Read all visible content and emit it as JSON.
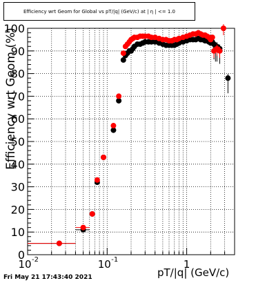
{
  "title": "Efficiency wrt Geom for Global vs pT/|q| (GeV/c) at | η | <= 1.0",
  "timestamp": "Fri May 21 17:43:40 2021",
  "colors": {
    "series_black": "#000000",
    "series_red": "#ff0000"
  },
  "chart_data": {
    "type": "scatter",
    "title": "Efficiency wrt Geom for Global vs pT/|q| (GeV/c) at | η | <= 1.0",
    "xlabel": "pT/|q| (GeV/c)",
    "ylabel": "Efficiency wrt Geom (%)",
    "xscale": "log",
    "xlim": [
      0.01,
      4
    ],
    "ylim": [
      0,
      100
    ],
    "grid": true,
    "x_ticks": [
      {
        "v": 0.01,
        "label": "10"
      },
      {
        "v": 0.1,
        "label": "10"
      },
      {
        "v": 1,
        "label": "1"
      }
    ],
    "x_tick_exp": "-2",
    "x_tick_exp2": "-1",
    "y_ticks": [
      0,
      10,
      20,
      30,
      40,
      50,
      60,
      70,
      80,
      90,
      100
    ],
    "series": [
      {
        "color": "#000000",
        "points": [
          [
            0.025,
            5
          ],
          [
            0.05,
            11
          ],
          [
            0.065,
            18
          ],
          [
            0.075,
            32
          ],
          [
            0.09,
            43
          ],
          [
            0.12,
            55
          ],
          [
            0.14,
            68
          ],
          [
            0.16,
            86
          ],
          [
            0.17,
            88
          ],
          [
            0.18,
            89
          ],
          [
            0.19,
            90
          ],
          [
            0.2,
            90
          ],
          [
            0.21,
            91
          ],
          [
            0.22,
            92
          ],
          [
            0.24,
            93
          ],
          [
            0.26,
            93
          ],
          [
            0.28,
            93.5
          ],
          [
            0.3,
            94
          ],
          [
            0.33,
            94
          ],
          [
            0.36,
            94
          ],
          [
            0.4,
            94
          ],
          [
            0.45,
            93.5
          ],
          [
            0.5,
            93
          ],
          [
            0.55,
            92.5
          ],
          [
            0.6,
            92.5
          ],
          [
            0.65,
            92.5
          ],
          [
            0.7,
            92.5
          ],
          [
            0.75,
            93
          ],
          [
            0.8,
            93.5
          ],
          [
            0.9,
            94
          ],
          [
            1.0,
            94.5
          ],
          [
            1.1,
            95
          ],
          [
            1.2,
            95
          ],
          [
            1.3,
            95
          ],
          [
            1.4,
            95.5
          ],
          [
            1.5,
            95
          ],
          [
            1.6,
            95
          ],
          [
            1.7,
            94.5
          ],
          [
            1.8,
            94.5
          ],
          [
            1.9,
            94
          ],
          [
            2.0,
            93.5
          ],
          [
            2.1,
            94
          ],
          [
            2.2,
            93
          ],
          [
            2.3,
            92
          ],
          [
            2.4,
            92
          ],
          [
            2.6,
            91
          ],
          [
            3.3,
            78
          ]
        ]
      },
      {
        "color": "#ff0000",
        "points": [
          [
            0.025,
            5
          ],
          [
            0.05,
            12
          ],
          [
            0.065,
            18
          ],
          [
            0.075,
            33
          ],
          [
            0.09,
            43
          ],
          [
            0.12,
            57
          ],
          [
            0.14,
            70
          ],
          [
            0.16,
            89
          ],
          [
            0.17,
            92
          ],
          [
            0.18,
            93
          ],
          [
            0.19,
            94
          ],
          [
            0.2,
            95
          ],
          [
            0.21,
            95.5
          ],
          [
            0.22,
            96
          ],
          [
            0.24,
            96
          ],
          [
            0.26,
            96.5
          ],
          [
            0.28,
            96.5
          ],
          [
            0.3,
            96.5
          ],
          [
            0.33,
            96.5
          ],
          [
            0.36,
            96
          ],
          [
            0.4,
            96
          ],
          [
            0.45,
            95.5
          ],
          [
            0.5,
            95
          ],
          [
            0.55,
            95
          ],
          [
            0.6,
            94.5
          ],
          [
            0.65,
            94.5
          ],
          [
            0.7,
            95
          ],
          [
            0.75,
            95
          ],
          [
            0.8,
            95.5
          ],
          [
            0.9,
            96
          ],
          [
            1.0,
            96.5
          ],
          [
            1.1,
            97
          ],
          [
            1.2,
            97.5
          ],
          [
            1.3,
            97.5
          ],
          [
            1.4,
            98
          ],
          [
            1.5,
            97.5
          ],
          [
            1.6,
            97
          ],
          [
            1.7,
            97
          ],
          [
            1.8,
            96.5
          ],
          [
            1.9,
            96
          ],
          [
            2.0,
            95
          ],
          [
            2.1,
            96
          ],
          [
            2.2,
            90
          ],
          [
            2.4,
            91
          ],
          [
            2.6,
            90
          ],
          [
            2.9,
            100
          ]
        ]
      }
    ]
  }
}
